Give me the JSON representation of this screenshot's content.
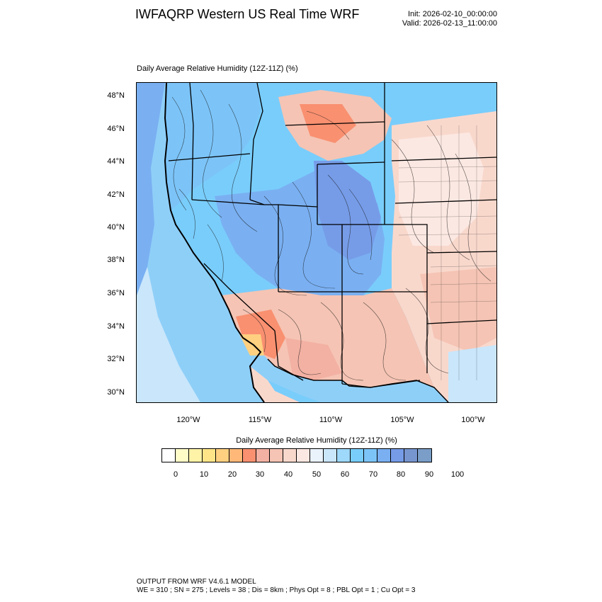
{
  "header": {
    "title": "IWFAQRP Western US Real Time WRF",
    "init": "Init: 2026-02-10_00:00:00",
    "valid": "Valid: 2026-02-13_11:00:00"
  },
  "plot": {
    "title": "Daily Average Relative Humidity (12Z-11Z)   (%)",
    "lat_labels": [
      "48°N",
      "46°N",
      "44°N",
      "42°N",
      "40°N",
      "38°N",
      "36°N",
      "34°N",
      "32°N",
      "30°N"
    ],
    "lon_labels": [
      "120°W",
      "115°W",
      "110°W",
      "105°W",
      "100°W"
    ]
  },
  "colorbar": {
    "title": "Daily Average Relative Humidity (12Z-11Z)  (%)",
    "labels": [
      "0",
      "10",
      "20",
      "30",
      "40",
      "50",
      "60",
      "70",
      "80",
      "90",
      "100"
    ],
    "colors": [
      "#ffffff",
      "#fffcc8",
      "#fff3a8",
      "#ffe588",
      "#ffd080",
      "#ffb878",
      "#f99070",
      "#f3b1a3",
      "#f5c4b4",
      "#f9d8cc",
      "#fce8e2",
      "#eaf2fc",
      "#c9e6fb",
      "#9ed8fb",
      "#79cdfb",
      "#7cc4f8",
      "#7ab0f2",
      "#769ce8",
      "#7795cf",
      "#7a9ec8"
    ]
  },
  "footer": {
    "line1": "OUTPUT FROM WRF V4.6.1 MODEL",
    "line2": "WE = 310 ; SN = 275 ; Levels = 38 ; Dis = 8km ; Phys Opt = 8 ; PBL Opt = 1 ; Cu Opt = 3"
  }
}
